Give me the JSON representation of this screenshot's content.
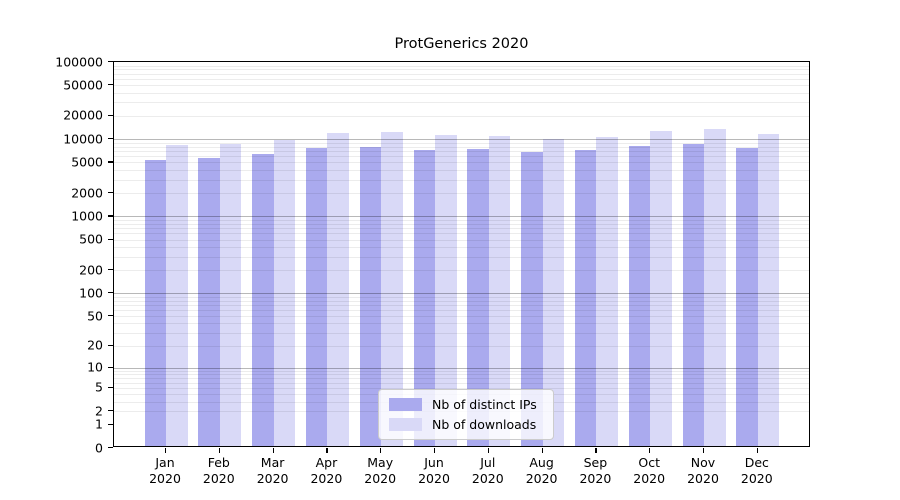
{
  "chart_data": {
    "type": "bar",
    "title": "ProtGenerics 2020",
    "categories": [
      "Jan",
      "Feb",
      "Mar",
      "Apr",
      "May",
      "Jun",
      "Jul",
      "Aug",
      "Sep",
      "Oct",
      "Nov",
      "Dec"
    ],
    "x_sublabel_year": "2020",
    "series": [
      {
        "name": "Nb of distinct IPs",
        "color": "#aaaaee",
        "values": [
          5000,
          5400,
          6100,
          7300,
          7500,
          6900,
          7000,
          6400,
          6800,
          7700,
          8100,
          7300
        ]
      },
      {
        "name": "Nb of downloads",
        "color": "#d9d9f7",
        "values": [
          8000,
          8100,
          9200,
          11300,
          11700,
          10700,
          10400,
          9600,
          10000,
          12000,
          12800,
          10900
        ]
      }
    ],
    "y_ticks": [
      100000,
      50000,
      20000,
      10000,
      5000,
      2000,
      1000,
      500,
      200,
      100,
      50,
      20,
      10,
      5,
      2,
      1,
      0
    ],
    "ylim": [
      0,
      100000
    ],
    "y_scale": "log1p",
    "grid": "horizontal",
    "decade_gridlines": [
      10,
      100,
      1000,
      10000
    ],
    "legend_position": "bottom-center",
    "xlabel": "",
    "ylabel": ""
  }
}
